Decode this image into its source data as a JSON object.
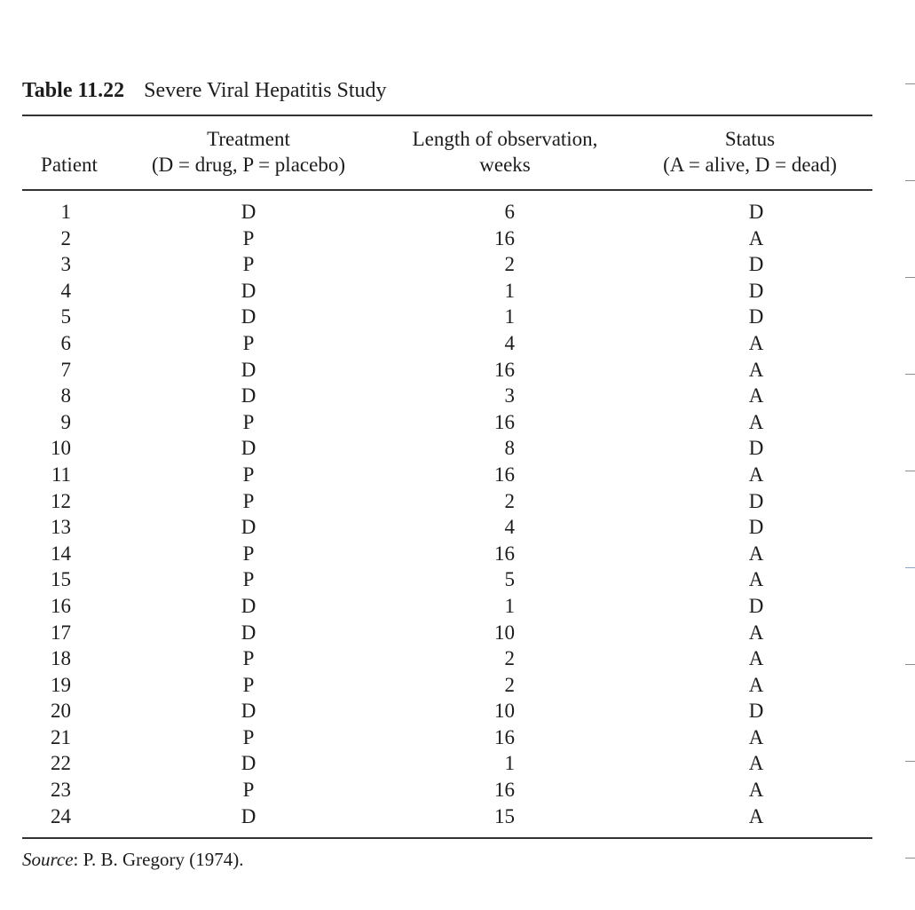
{
  "caption": {
    "label": "Table 11.22",
    "title": "Severe Viral Hepatitis Study"
  },
  "headers": {
    "patient": "Patient",
    "treatment_line1": "Treatment",
    "treatment_line2": "(D = drug, P = placebo)",
    "length_line1": "Length of observation,",
    "length_line2": "weeks",
    "status_line1": "Status",
    "status_line2": "(A = alive, D = dead)"
  },
  "rows": [
    {
      "patient": "1",
      "treatment": "D",
      "length": "6",
      "status": "D"
    },
    {
      "patient": "2",
      "treatment": "P",
      "length": "16",
      "status": "A"
    },
    {
      "patient": "3",
      "treatment": "P",
      "length": "2",
      "status": "D"
    },
    {
      "patient": "4",
      "treatment": "D",
      "length": "1",
      "status": "D"
    },
    {
      "patient": "5",
      "treatment": "D",
      "length": "1",
      "status": "D"
    },
    {
      "patient": "6",
      "treatment": "P",
      "length": "4",
      "status": "A"
    },
    {
      "patient": "7",
      "treatment": "D",
      "length": "16",
      "status": "A"
    },
    {
      "patient": "8",
      "treatment": "D",
      "length": "3",
      "status": "A"
    },
    {
      "patient": "9",
      "treatment": "P",
      "length": "16",
      "status": "A"
    },
    {
      "patient": "10",
      "treatment": "D",
      "length": "8",
      "status": "D"
    },
    {
      "patient": "11",
      "treatment": "P",
      "length": "16",
      "status": "A"
    },
    {
      "patient": "12",
      "treatment": "P",
      "length": "2",
      "status": "D"
    },
    {
      "patient": "13",
      "treatment": "D",
      "length": "4",
      "status": "D"
    },
    {
      "patient": "14",
      "treatment": "P",
      "length": "16",
      "status": "A"
    },
    {
      "patient": "15",
      "treatment": "P",
      "length": "5",
      "status": "A"
    },
    {
      "patient": "16",
      "treatment": "D",
      "length": "1",
      "status": "D"
    },
    {
      "patient": "17",
      "treatment": "D",
      "length": "10",
      "status": "A"
    },
    {
      "patient": "18",
      "treatment": "P",
      "length": "2",
      "status": "A"
    },
    {
      "patient": "19",
      "treatment": "P",
      "length": "2",
      "status": "A"
    },
    {
      "patient": "20",
      "treatment": "D",
      "length": "10",
      "status": "D"
    },
    {
      "patient": "21",
      "treatment": "P",
      "length": "16",
      "status": "A"
    },
    {
      "patient": "22",
      "treatment": "D",
      "length": "1",
      "status": "A"
    },
    {
      "patient": "23",
      "treatment": "P",
      "length": "16",
      "status": "A"
    },
    {
      "patient": "24",
      "treatment": "D",
      "length": "15",
      "status": "A"
    }
  ],
  "source": {
    "label": "Source",
    "text": ": P. B. Gregory (1974)."
  },
  "colors": {
    "text": "#1c1c1c",
    "rule": "#333333",
    "edge_tick": "#8c8c8c"
  }
}
